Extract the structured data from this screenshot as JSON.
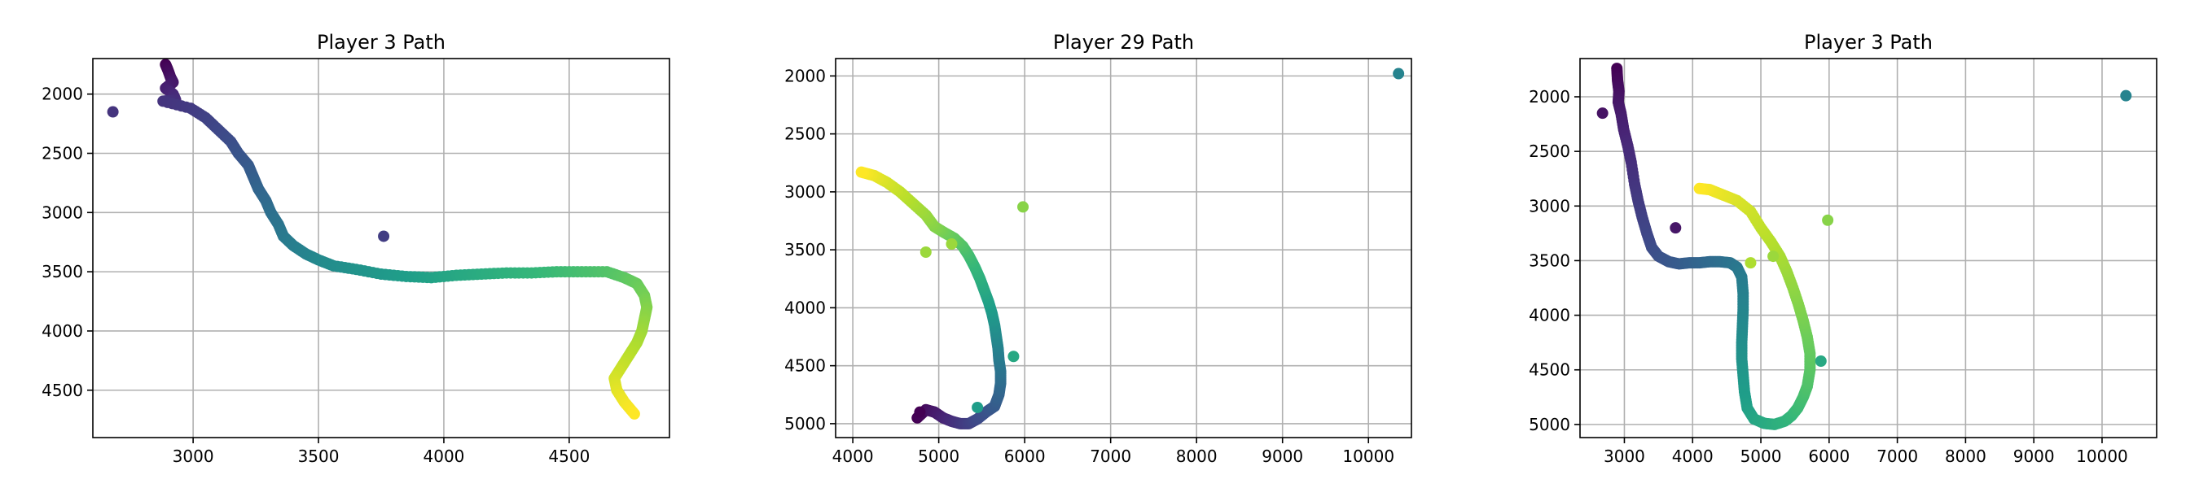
{
  "chart_data": [
    {
      "type": "scatter",
      "title": "Player 3 Path",
      "xlabel": "",
      "ylabel": "",
      "xlim": [
        2600,
        4900
      ],
      "ylim": [
        4900,
        1700
      ],
      "y_inverted": true,
      "xticks": [
        3000,
        3500,
        4000,
        4500
      ],
      "yticks": [
        2000,
        2500,
        3000,
        3500,
        4000,
        4500
      ],
      "grid": true,
      "colormap": "viridis",
      "path": [
        [
          2890,
          1750
        ],
        [
          2900,
          1800
        ],
        [
          2910,
          1860
        ],
        [
          2920,
          1900
        ],
        [
          2890,
          1950
        ],
        [
          2920,
          2000
        ],
        [
          2930,
          2050
        ],
        [
          2880,
          2060
        ],
        [
          2990,
          2120
        ],
        [
          3050,
          2200
        ],
        [
          3100,
          2300
        ],
        [
          3150,
          2400
        ],
        [
          3180,
          2500
        ],
        [
          3220,
          2600
        ],
        [
          3240,
          2700
        ],
        [
          3260,
          2800
        ],
        [
          3290,
          2900
        ],
        [
          3310,
          3000
        ],
        [
          3340,
          3100
        ],
        [
          3360,
          3200
        ],
        [
          3400,
          3280
        ],
        [
          3450,
          3350
        ],
        [
          3500,
          3400
        ],
        [
          3560,
          3450
        ],
        [
          3650,
          3480
        ],
        [
          3750,
          3520
        ],
        [
          3850,
          3540
        ],
        [
          3950,
          3550
        ],
        [
          4050,
          3530
        ],
        [
          4150,
          3520
        ],
        [
          4250,
          3510
        ],
        [
          4350,
          3510
        ],
        [
          4450,
          3500
        ],
        [
          4550,
          3500
        ],
        [
          4650,
          3500
        ],
        [
          4720,
          3550
        ],
        [
          4770,
          3600
        ],
        [
          4800,
          3700
        ],
        [
          4810,
          3800
        ],
        [
          4800,
          3900
        ],
        [
          4790,
          4000
        ],
        [
          4770,
          4100
        ],
        [
          4740,
          4200
        ],
        [
          4710,
          4300
        ],
        [
          4680,
          4400
        ],
        [
          4690,
          4500
        ],
        [
          4720,
          4600
        ],
        [
          4760,
          4700
        ]
      ],
      "outliers": [
        [
          2680,
          2150,
          0.15
        ],
        [
          3760,
          3200,
          0.18
        ]
      ]
    },
    {
      "type": "scatter",
      "title": "Player 29 Path",
      "xlabel": "",
      "ylabel": "",
      "xlim": [
        3800,
        10500
      ],
      "ylim": [
        5120,
        1850
      ],
      "y_inverted": true,
      "xticks": [
        4000,
        5000,
        6000,
        7000,
        8000,
        9000,
        10000
      ],
      "yticks": [
        2000,
        2500,
        3000,
        3500,
        4000,
        4500,
        5000
      ],
      "grid": true,
      "colormap": "viridis",
      "path": [
        [
          4750,
          4950
        ],
        [
          4850,
          4880
        ],
        [
          4950,
          4900
        ],
        [
          5050,
          4950
        ],
        [
          5150,
          4980
        ],
        [
          5250,
          5000
        ],
        [
          5350,
          5000
        ],
        [
          5450,
          4960
        ],
        [
          5550,
          4900
        ],
        [
          5650,
          4850
        ],
        [
          5700,
          4750
        ],
        [
          5720,
          4650
        ],
        [
          5720,
          4550
        ],
        [
          5700,
          4450
        ],
        [
          5690,
          4350
        ],
        [
          5670,
          4250
        ],
        [
          5650,
          4150
        ],
        [
          5620,
          4050
        ],
        [
          5580,
          3950
        ],
        [
          5530,
          3850
        ],
        [
          5480,
          3750
        ],
        [
          5420,
          3650
        ],
        [
          5350,
          3550
        ],
        [
          5280,
          3470
        ],
        [
          5180,
          3400
        ],
        [
          5060,
          3350
        ],
        [
          4950,
          3300
        ],
        [
          4850,
          3200
        ],
        [
          4700,
          3100
        ],
        [
          4550,
          3000
        ],
        [
          4400,
          2920
        ],
        [
          4250,
          2860
        ],
        [
          4100,
          2830
        ]
      ],
      "outliers": [
        [
          10350,
          1980,
          0.45
        ],
        [
          5980,
          3130,
          0.82
        ],
        [
          5870,
          4420,
          0.6
        ],
        [
          4780,
          4900,
          0.0
        ],
        [
          5450,
          4860,
          0.55
        ],
        [
          5150,
          3450,
          0.85
        ],
        [
          4850,
          3520,
          0.85
        ]
      ]
    },
    {
      "type": "scatter",
      "title": "Player 3 Path",
      "xlabel": "",
      "ylabel": "",
      "xlim": [
        2350,
        10800
      ],
      "ylim": [
        5120,
        1650
      ],
      "y_inverted": true,
      "xticks": [
        3000,
        4000,
        5000,
        6000,
        7000,
        8000,
        9000,
        10000
      ],
      "yticks": [
        2000,
        2500,
        3000,
        3500,
        4000,
        4500,
        5000
      ],
      "grid": true,
      "colormap": "viridis",
      "path": [
        [
          2890,
          1740
        ],
        [
          2900,
          1850
        ],
        [
          2920,
          1950
        ],
        [
          2910,
          2050
        ],
        [
          2950,
          2150
        ],
        [
          2990,
          2300
        ],
        [
          3050,
          2450
        ],
        [
          3100,
          2600
        ],
        [
          3150,
          2800
        ],
        [
          3200,
          2950
        ],
        [
          3260,
          3100
        ],
        [
          3330,
          3250
        ],
        [
          3400,
          3380
        ],
        [
          3500,
          3460
        ],
        [
          3650,
          3510
        ],
        [
          3800,
          3530
        ],
        [
          3950,
          3520
        ],
        [
          4100,
          3520
        ],
        [
          4250,
          3510
        ],
        [
          4400,
          3510
        ],
        [
          4550,
          3520
        ],
        [
          4650,
          3560
        ],
        [
          4720,
          3650
        ],
        [
          4740,
          3800
        ],
        [
          4740,
          3950
        ],
        [
          4730,
          4100
        ],
        [
          4720,
          4250
        ],
        [
          4720,
          4400
        ],
        [
          4740,
          4550
        ],
        [
          4760,
          4700
        ],
        [
          4800,
          4850
        ],
        [
          4900,
          4950
        ],
        [
          5050,
          4990
        ],
        [
          5200,
          5000
        ],
        [
          5350,
          4970
        ],
        [
          5450,
          4920
        ],
        [
          5540,
          4850
        ],
        [
          5620,
          4750
        ],
        [
          5680,
          4650
        ],
        [
          5720,
          4500
        ],
        [
          5720,
          4350
        ],
        [
          5680,
          4200
        ],
        [
          5620,
          4050
        ],
        [
          5550,
          3900
        ],
        [
          5470,
          3750
        ],
        [
          5380,
          3600
        ],
        [
          5280,
          3460
        ],
        [
          5150,
          3330
        ],
        [
          5000,
          3200
        ],
        [
          4850,
          3050
        ],
        [
          4650,
          2950
        ],
        [
          4450,
          2900
        ],
        [
          4250,
          2850
        ],
        [
          4100,
          2840
        ]
      ],
      "outliers": [
        [
          2680,
          2150,
          0.05
        ],
        [
          3750,
          3200,
          0.06
        ],
        [
          10350,
          1990,
          0.45
        ],
        [
          5980,
          3130,
          0.82
        ],
        [
          5880,
          4420,
          0.6
        ],
        [
          5180,
          3460,
          0.85
        ],
        [
          4850,
          3520,
          0.88
        ]
      ]
    }
  ]
}
